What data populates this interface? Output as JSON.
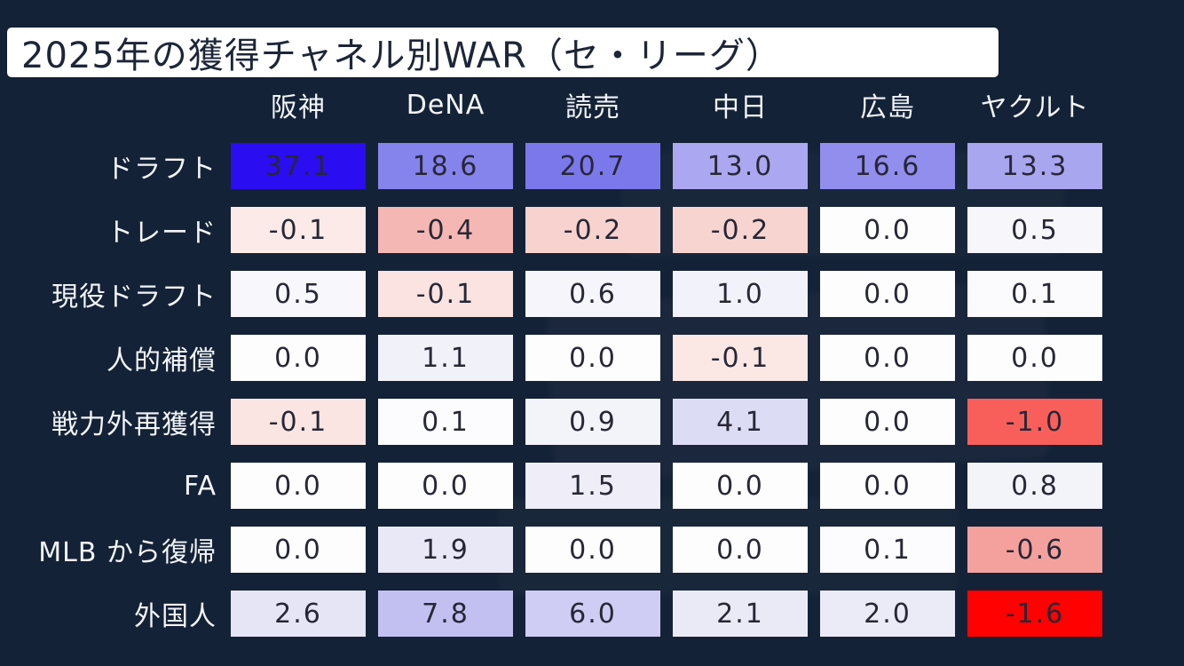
{
  "title": "2025年の獲得チャネル別WAR（セ・リーグ）",
  "colors": {
    "background": "#142237",
    "title_bg": "#ffffff",
    "title_text": "#1d2638",
    "header_text": "#f2f5f9",
    "label_text": "#f2f5f9",
    "cell_text": "#272737"
  },
  "chart_data": {
    "type": "heatmap",
    "title": "2025年の獲得チャネル別WAR（セ・リーグ）",
    "columns": [
      "阪神",
      "DeNA",
      "読売",
      "中日",
      "広島",
      "ヤクルト"
    ],
    "rows": [
      "ドラフト",
      "トレード",
      "現役ドラフト",
      "人的補償",
      "戦力外再獲得",
      "FA",
      "MLB から復帰",
      "外国人"
    ],
    "values": [
      [
        37.1,
        18.6,
        20.7,
        13.0,
        16.6,
        13.3
      ],
      [
        -0.1,
        -0.4,
        -0.2,
        -0.2,
        0.0,
        0.5
      ],
      [
        0.5,
        -0.1,
        0.6,
        1.0,
        0.0,
        0.1
      ],
      [
        0.0,
        1.1,
        0.0,
        -0.1,
        0.0,
        0.0
      ],
      [
        -0.1,
        0.1,
        0.9,
        4.1,
        0.0,
        -1.0
      ],
      [
        0.0,
        0.0,
        1.5,
        0.0,
        0.0,
        0.8
      ],
      [
        0.0,
        1.9,
        0.0,
        0.0,
        0.1,
        -0.6
      ],
      [
        2.6,
        7.8,
        6.0,
        2.1,
        2.0,
        -1.6
      ]
    ],
    "display": [
      [
        "37.1",
        "18.6",
        "20.7",
        "13.0",
        "16.6",
        "13.3"
      ],
      [
        "-0.1",
        "-0.4",
        "-0.2",
        "-0.2",
        "0.0",
        "0.5"
      ],
      [
        "0.5",
        "-0.1",
        "0.6",
        "1.0",
        "0.0",
        "0.1"
      ],
      [
        "0.0",
        "1.1",
        "0.0",
        "-0.1",
        "0.0",
        "0.0"
      ],
      [
        "-0.1",
        "0.1",
        "0.9",
        "4.1",
        "0.0",
        "-1.0"
      ],
      [
        "0.0",
        "0.0",
        "1.5",
        "0.0",
        "0.0",
        "0.8"
      ],
      [
        "0.0",
        "1.9",
        "0.0",
        "0.0",
        "0.1",
        "-0.6"
      ],
      [
        "2.6",
        "7.8",
        "6.0",
        "2.1",
        "2.0",
        "-1.6"
      ]
    ],
    "cell_colors": [
      [
        "#2a0df0",
        "#8583ec",
        "#7b78ec",
        "#aba8f1",
        "#918eee",
        "#a9a6f0"
      ],
      [
        "#fbeae7",
        "#f5b7b3",
        "#f8d2ce",
        "#f8d4d0",
        "#fdfdfd",
        "#f6f6fb"
      ],
      [
        "#f7f7fc",
        "#fae3e0",
        "#f5f5fb",
        "#f2f2fa",
        "#fdfdfd",
        "#fbfbfd"
      ],
      [
        "#fdfdfd",
        "#f1f1f9",
        "#fdfdfd",
        "#fbe7e4",
        "#fdfdfd",
        "#fdfdfd"
      ],
      [
        "#fae5e2",
        "#fcfcfe",
        "#f3f3fa",
        "#dddcf5",
        "#fdfdfd",
        "#f85f5b"
      ],
      [
        "#fdfdfd",
        "#fdfdfd",
        "#eeedf8",
        "#fdfdfd",
        "#fdfdfd",
        "#f3f3fa"
      ],
      [
        "#fdfdfd",
        "#e9e8f7",
        "#fdfdfd",
        "#fdfdfd",
        "#fcfcfe",
        "#f4a19d"
      ],
      [
        "#e6e5f6",
        "#c2c0f1",
        "#cfcdf3",
        "#eaeaf7",
        "#ebebf7",
        "#fe0100"
      ]
    ],
    "color_scale": {
      "positive_color": "blue",
      "negative_color": "red",
      "neutral_color": "white"
    },
    "legend": "none",
    "xlabel": "",
    "ylabel": ""
  }
}
